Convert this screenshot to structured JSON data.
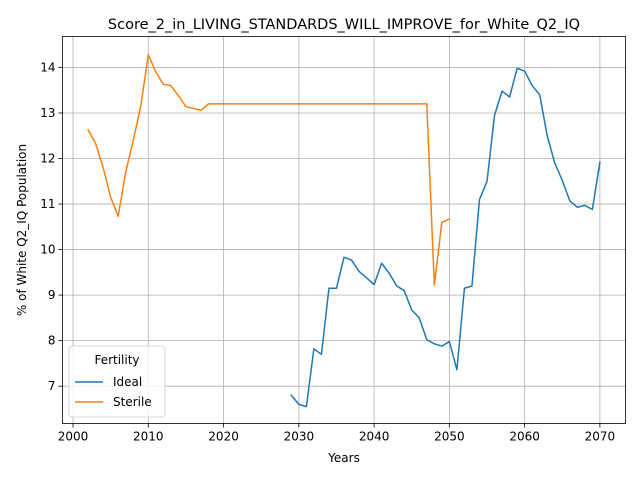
{
  "chart_data": {
    "type": "line",
    "title": "Score_2_in_LIVING_STANDARDS_WILL_IMPROVE_for_White_Q2_IQ",
    "xlabel": "Years",
    "ylabel": "% of White Q2_IQ Population",
    "xlim": [
      1998.6,
      2073.4
    ],
    "ylim": [
      6.18,
      14.68
    ],
    "xticks": [
      2000,
      2010,
      2020,
      2030,
      2040,
      2050,
      2060,
      2070
    ],
    "yticks": [
      7,
      8,
      9,
      10,
      11,
      12,
      13,
      14
    ],
    "grid": true,
    "legend": {
      "title": "Fertility",
      "position": "lower-left"
    },
    "series": [
      {
        "name": "Ideal",
        "color": "#1f77b4",
        "x": [
          2029,
          2030,
          2031,
          2032,
          2033,
          2034,
          2035,
          2036,
          2037,
          2038,
          2039,
          2040,
          2041,
          2042,
          2043,
          2044,
          2045,
          2046,
          2047,
          2048,
          2049,
          2050,
          2051,
          2052,
          2053,
          2054,
          2055,
          2056,
          2057,
          2058,
          2059,
          2060,
          2061,
          2062,
          2063,
          2064,
          2065,
          2066,
          2067,
          2068,
          2069,
          2070
        ],
        "y": [
          6.8,
          6.6,
          6.55,
          7.82,
          7.7,
          9.15,
          9.15,
          9.83,
          9.77,
          9.52,
          9.38,
          9.23,
          9.7,
          9.48,
          9.2,
          9.1,
          8.67,
          8.5,
          8.02,
          7.93,
          7.88,
          7.98,
          7.36,
          9.15,
          9.2,
          11.1,
          11.5,
          12.95,
          13.48,
          13.35,
          13.98,
          13.92,
          13.6,
          13.4,
          12.5,
          11.9,
          11.52,
          11.07,
          10.93,
          10.97,
          10.88,
          11.92
        ]
      },
      {
        "name": "Sterile",
        "color": "#ff7f0e",
        "x": [
          2002,
          2003,
          2004,
          2005,
          2006,
          2007,
          2008,
          2009,
          2010,
          2011,
          2012,
          2013,
          2014,
          2015,
          2016,
          2017,
          2018,
          2019,
          2020,
          2025,
          2030,
          2035,
          2040,
          2045,
          2046,
          2047,
          2048,
          2049,
          2050
        ],
        "y": [
          12.63,
          12.33,
          11.8,
          11.15,
          10.73,
          11.7,
          12.4,
          13.15,
          14.28,
          13.9,
          13.63,
          13.6,
          13.38,
          13.14,
          13.1,
          13.06,
          13.2,
          13.2,
          13.2,
          13.2,
          13.2,
          13.2,
          13.2,
          13.2,
          13.2,
          13.2,
          9.22,
          10.6,
          10.67
        ]
      }
    ]
  }
}
